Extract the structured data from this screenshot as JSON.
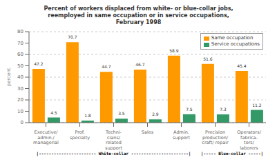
{
  "chart_data": {
    "type": "bar",
    "title": "Percent of workers displaced from white- or blue-collar jobs,\nreemployed in same occupation or in service occupations,\nFebruary 1998",
    "ylabel": "percent",
    "categories": [
      "Executive/\nadmin./\nmanagerial",
      "Prof.\nspecialty",
      "Techni-\ncians/\nrelated\nsupport",
      "Sales",
      "Admin.\nsupport",
      "Precision\nproduction/\ncraft/ repair",
      "Operators/\nfabrica-\ntors/\nlaborers"
    ],
    "series": [
      {
        "name": "Same occupation",
        "color": "#FF9900",
        "values": [
          47.2,
          70.7,
          44.7,
          46.7,
          58.9,
          51.6,
          45.4
        ]
      },
      {
        "name": "Service occupations",
        "color": "#339966",
        "values": [
          4.5,
          1.8,
          3.5,
          2.9,
          7.5,
          7.3,
          11.2
        ]
      }
    ],
    "ylim": [
      0,
      80
    ],
    "yticks": [
      0,
      10,
      20,
      30,
      40,
      50,
      60,
      70,
      80
    ],
    "grid": true,
    "legend": "upper right",
    "data_labels": true,
    "annotations": [
      "|----------------------- White-collar -----------------------|",
      "|----- Blue-collar -----|"
    ]
  }
}
